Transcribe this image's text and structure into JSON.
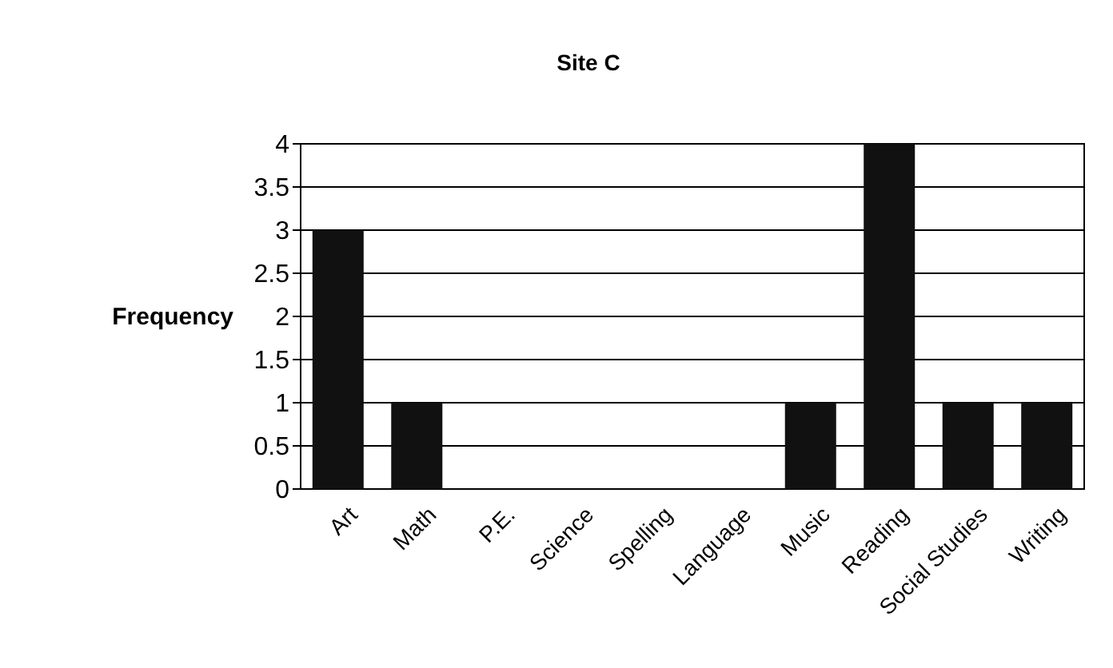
{
  "chart_data": {
    "type": "bar",
    "title": "Site C",
    "ylabel": "Frequency",
    "categories": [
      "Art",
      "Math",
      "P.E.",
      "Science",
      "Spelling",
      "Language",
      "Music",
      "Reading",
      "Social Studies",
      "Writing"
    ],
    "values": [
      3,
      1,
      0,
      0,
      0,
      0,
      1,
      4,
      1,
      1
    ],
    "color": "#111111",
    "ylim": [
      0,
      4
    ],
    "yticks": [
      0,
      0.5,
      1,
      1.5,
      2,
      2.5,
      3,
      3.5,
      4
    ],
    "grid": "y"
  }
}
